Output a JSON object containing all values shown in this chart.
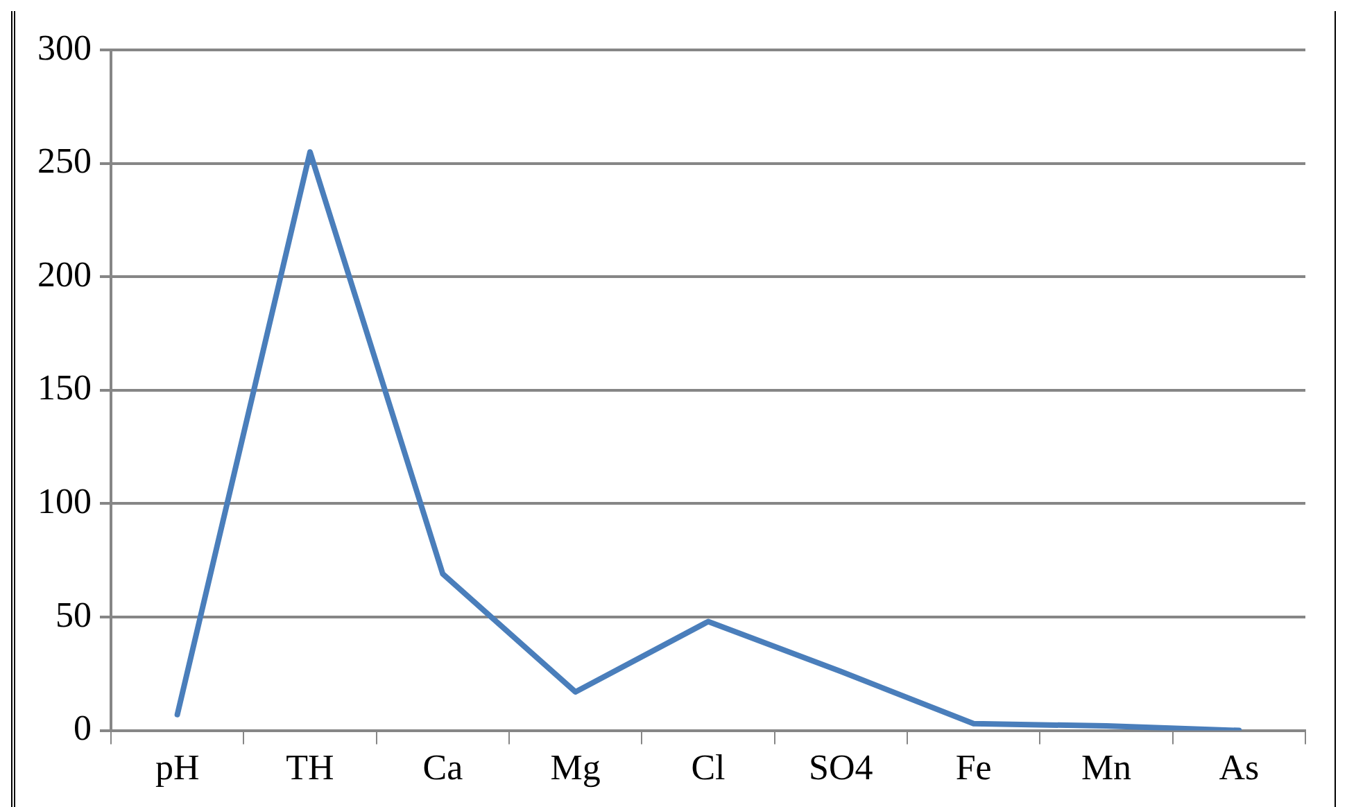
{
  "chart_data": {
    "type": "line",
    "categories": [
      "pH",
      "TH",
      "Ca",
      "Mg",
      "Cl",
      "SO4",
      "Fe",
      "Mn",
      "As"
    ],
    "series": [
      {
        "color": "#4a7ebb",
        "values": [
          7,
          255,
          69,
          17,
          48,
          26,
          3,
          2,
          0
        ]
      }
    ],
    "ylim": [
      0,
      300
    ],
    "yticks": [
      0,
      50,
      100,
      150,
      200,
      250,
      300
    ],
    "grid": "y",
    "legend": false,
    "marker": "none",
    "line_style": "solid"
  }
}
